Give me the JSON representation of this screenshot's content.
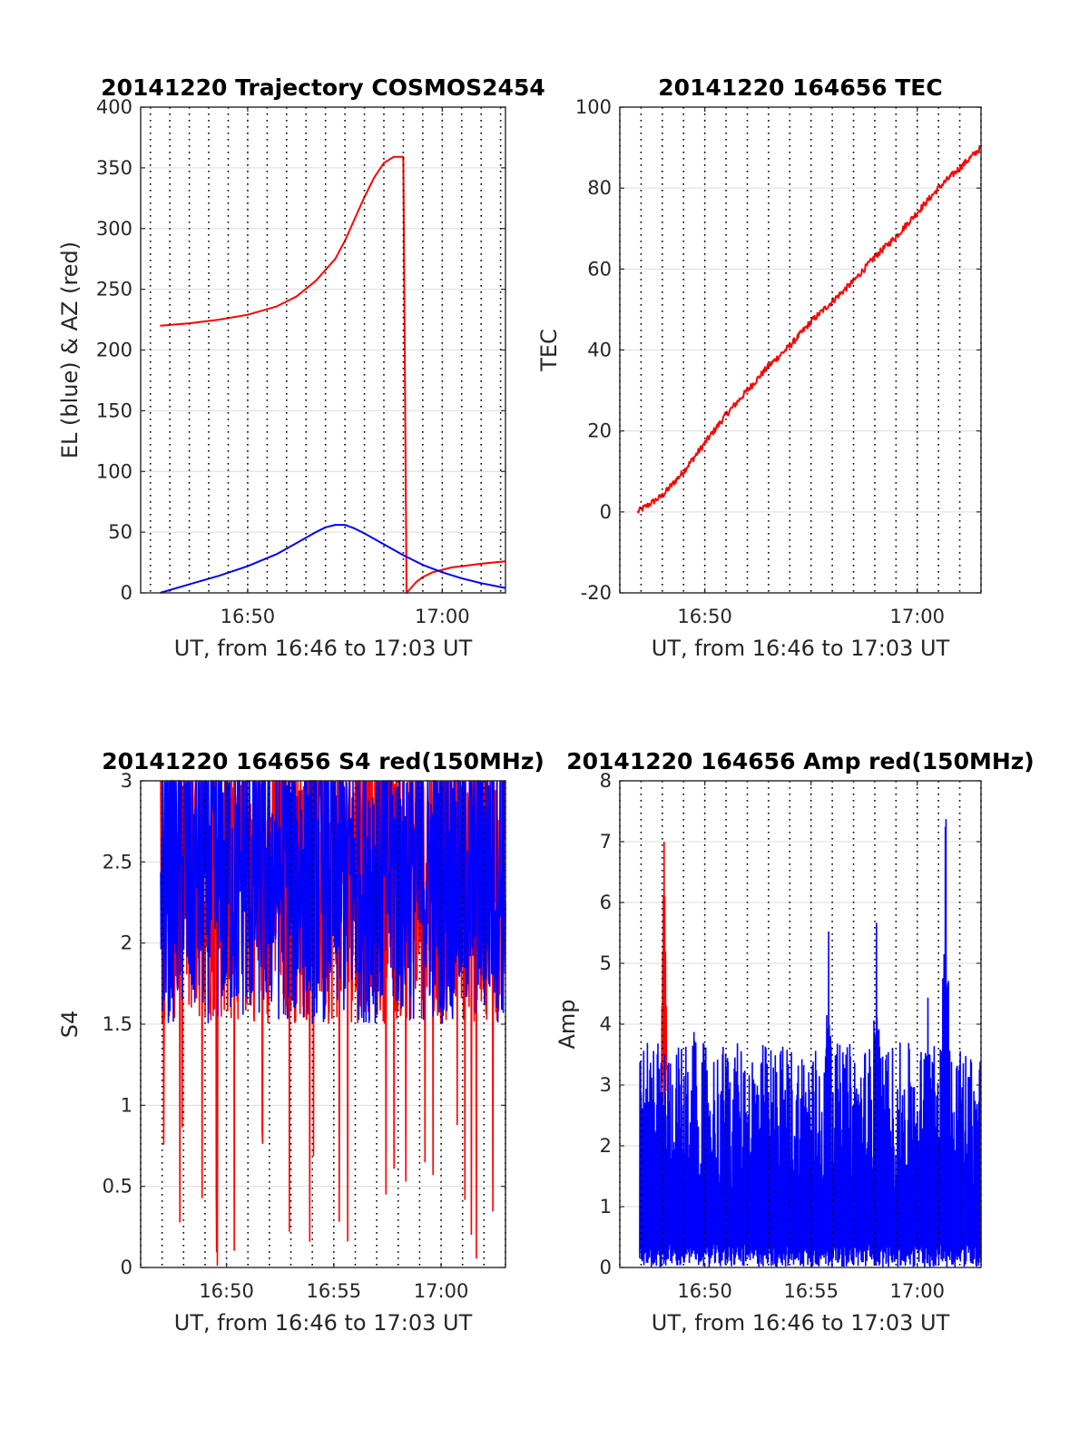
{
  "chart_data": [
    {
      "type": "line",
      "title": "20141220 Trajectory COSMOS2454",
      "xlabel": "UT, from 16:46 to 17:03 UT",
      "ylabel": "EL (blue) & AZ (red)",
      "xlim": [
        "16:44:30",
        "17:03:15"
      ],
      "ylim": [
        0,
        400
      ],
      "x_ticks": [
        "16:50",
        "17:00"
      ],
      "y_ticks": [
        0,
        50,
        100,
        150,
        200,
        250,
        300,
        350,
        400
      ],
      "grid": true,
      "series": [
        {
          "color": "#ff0000",
          "x": [
            "16:45:30",
            "16:47:00",
            "16:48:30",
            "16:50:00",
            "16:51:30",
            "16:52:30",
            "16:53:30",
            "16:54:30",
            "16:55:00",
            "16:55:30",
            "16:56:00",
            "16:56:30",
            "16:57:00",
            "16:57:30",
            "16:58:00",
            "16:58:10",
            "16:58:20",
            "16:58:40",
            "16:59:00",
            "16:59:30",
            "17:00:00",
            "17:00:30",
            "17:01:00",
            "17:02:00",
            "17:03:15"
          ],
          "values": [
            220,
            222,
            225,
            229,
            236,
            244,
            257,
            275,
            290,
            308,
            326,
            342,
            354,
            359,
            359,
            0,
            3,
            9,
            13,
            17,
            19,
            21,
            22,
            24,
            26
          ]
        },
        {
          "color": "#0000ff",
          "x": [
            "16:45:30",
            "16:47:00",
            "16:48:30",
            "16:50:00",
            "16:51:30",
            "16:52:30",
            "16:53:30",
            "16:54:00",
            "16:54:30",
            "16:55:00",
            "16:55:30",
            "16:56:00",
            "16:57:00",
            "16:58:00",
            "16:58:30",
            "16:59:00",
            "17:00:00",
            "17:01:00",
            "17:02:00",
            "17:03:15"
          ],
          "values": [
            0,
            7,
            14,
            22,
            32,
            41,
            50,
            54,
            56,
            56,
            53,
            49,
            40,
            31,
            27,
            23,
            17,
            12,
            8,
            4
          ]
        }
      ]
    },
    {
      "type": "line",
      "title": "20141220 164656 TEC",
      "xlabel": "UT, from 16:46 to 17:03 UT",
      "ylabel": "TEC",
      "xlim": [
        "16:46:00",
        "17:03:00"
      ],
      "ylim": [
        -20,
        100
      ],
      "x_ticks": [
        "16:50",
        "17:00"
      ],
      "y_ticks": [
        -20,
        0,
        20,
        40,
        60,
        80,
        100
      ],
      "grid": true,
      "series": [
        {
          "color": "#ff0000",
          "x": [
            "16:46:50",
            "16:48:00",
            "16:49:00",
            "16:50:00",
            "16:51:00",
            "16:52:00",
            "16:53:00",
            "16:54:00",
            "16:55:00",
            "16:56:00",
            "16:57:00",
            "16:58:00",
            "16:59:00",
            "17:00:00",
            "17:01:00",
            "17:02:00",
            "17:03:00"
          ],
          "values": [
            0,
            4,
            10,
            17,
            24,
            30,
            36,
            41,
            47,
            52,
            57,
            63,
            68,
            74,
            80,
            85,
            90
          ]
        }
      ]
    },
    {
      "type": "line",
      "title": "20141220 164656 S4 red(150MHz)",
      "xlabel": "UT, from 16:46 to 17:03 UT",
      "ylabel": "S4",
      "xlim": [
        "16:46:00",
        "17:03:00"
      ],
      "ylim": [
        0,
        3
      ],
      "x_ticks": [
        "16:50",
        "16:55",
        "17:00"
      ],
      "y_ticks": [
        0,
        0.5,
        1,
        1.5,
        2,
        2.5,
        3
      ],
      "grid": true,
      "series": [
        {
          "color": "#ff0000",
          "x_range": [
            "16:46:56",
            "17:03:00"
          ],
          "typical_range": [
            1.5,
            3
          ],
          "dips_to": 0
        },
        {
          "color": "#0000ff",
          "x_range": [
            "16:46:56",
            "17:03:00"
          ],
          "typical_range": [
            1.5,
            3
          ]
        }
      ]
    },
    {
      "type": "line",
      "title": "20141220 164656 Amp red(150MHz)",
      "xlabel": "UT, from 16:46 to 17:03 UT",
      "ylabel": "Amp",
      "xlim": [
        "16:46:00",
        "17:03:00"
      ],
      "ylim": [
        0,
        8
      ],
      "x_ticks": [
        "16:50",
        "16:55",
        "17:00"
      ],
      "y_ticks": [
        0,
        1,
        2,
        3,
        4,
        5,
        6,
        7,
        8
      ],
      "grid": true,
      "series": [
        {
          "color": "#ff0000",
          "peaks": [
            {
              "x": "16:48:05",
              "value": 7.0
            }
          ]
        },
        {
          "color": "#0000ff",
          "x_range": [
            "16:46:56",
            "17:03:00"
          ],
          "baseline_range": [
            0,
            2.5
          ],
          "peaks": [
            {
              "x": "16:47:05",
              "value": 2.8
            },
            {
              "x": "16:47:30",
              "value": 3.4
            },
            {
              "x": "16:49:30",
              "value": 3.9
            },
            {
              "x": "16:51:00",
              "value": 3.3
            },
            {
              "x": "16:55:50",
              "value": 5.7
            },
            {
              "x": "16:58:05",
              "value": 5.9
            },
            {
              "x": "17:00:30",
              "value": 4.7
            },
            {
              "x": "17:01:20",
              "value": 7.4
            },
            {
              "x": "17:02:00",
              "value": 3.5
            }
          ]
        }
      ]
    }
  ]
}
